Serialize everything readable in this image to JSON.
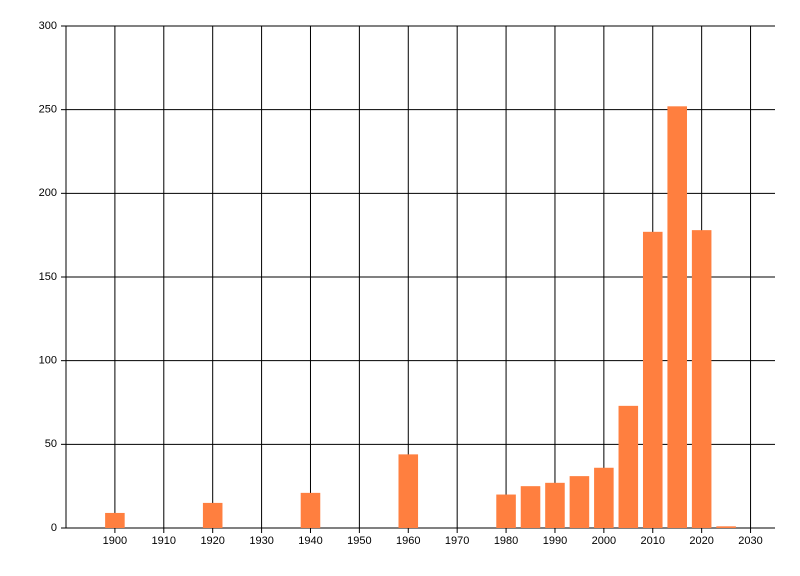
{
  "chart_data": {
    "type": "bar",
    "x": [
      1900,
      1920,
      1940,
      1960,
      1980,
      1985,
      1990,
      1995,
      2000,
      2005,
      2010,
      2015,
      2020,
      2025
    ],
    "values": [
      9,
      15,
      21,
      44,
      20,
      25,
      27,
      31,
      36,
      73,
      177,
      252,
      178,
      1
    ],
    "color": "#ff7f3f",
    "xlim": [
      1890,
      2035
    ],
    "xticks": [
      1900,
      1910,
      1920,
      1930,
      1940,
      1950,
      1960,
      1970,
      1980,
      1990,
      2000,
      2010,
      2020,
      2030
    ],
    "ylim": [
      0,
      300
    ],
    "yticks": [
      0,
      50,
      100,
      150,
      200,
      250,
      300
    ],
    "grid": true
  }
}
